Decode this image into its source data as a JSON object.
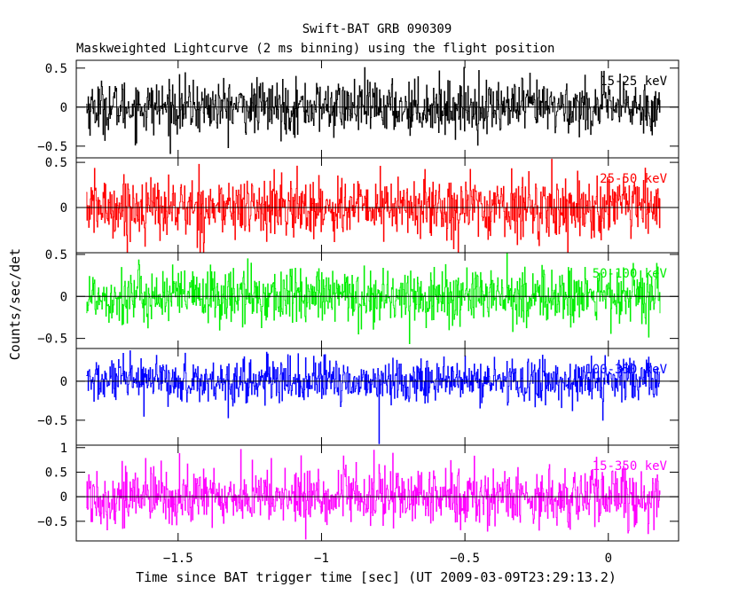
{
  "chart_data": {
    "type": "line",
    "title": "Swift-BAT GRB 090309",
    "subtitle": "Maskweighted Lightcurve (2 ms binning) using the flight position",
    "xlabel": "Time since BAT trigger time [sec] (UT 2009-03-09T23:29:13.2)",
    "ylabel": "Counts/sec/det",
    "xlim": [
      -1.855,
      0.245
    ],
    "x_start": -1.82,
    "x_end": 0.18,
    "x_bin": 0.002,
    "x_ticks": [
      -1.5,
      -1,
      -0.5,
      0
    ],
    "x_tick_labels": [
      "−1.5",
      "−1",
      "−0.5",
      "0"
    ],
    "grid": false,
    "zero_line": true,
    "series": [
      {
        "name": "15-25 keV",
        "color": "#000000",
        "ylim": [
          -0.65,
          0.6
        ],
        "y_ticks": [
          -0.5,
          0,
          0.5
        ],
        "y_tick_labels": [
          "−0.5",
          "0",
          "0.5"
        ],
        "amplitude": 0.17,
        "dips": []
      },
      {
        "name": "25-50 keV",
        "color": "#ff0000",
        "ylim": [
          -0.5,
          0.55
        ],
        "y_ticks": [
          0,
          0.5
        ],
        "y_tick_labels": [
          "0",
          "0.5"
        ],
        "amplitude": 0.17,
        "dips": []
      },
      {
        "name": "50-100 keV",
        "color": "#00ee00",
        "ylim": [
          -0.62,
          0.52
        ],
        "y_ticks": [
          -0.5,
          0,
          0.5
        ],
        "y_tick_labels": [
          "−0.5",
          "0",
          "0.5"
        ],
        "amplitude": 0.17,
        "dips": []
      },
      {
        "name": "100-350 keV",
        "color": "#0000ff",
        "ylim": [
          -0.82,
          0.42
        ],
        "y_ticks": [
          -0.5,
          0
        ],
        "y_tick_labels": [
          "−0.5",
          "0"
        ],
        "amplitude": 0.14,
        "dips": [
          {
            "x": -0.8,
            "y": -0.8
          },
          {
            "x": -1.62,
            "y": -0.45
          },
          {
            "x": -0.02,
            "y": -0.5
          }
        ]
      },
      {
        "name": "15-350 keV",
        "color": "#ff00ff",
        "ylim": [
          -0.9,
          1.05
        ],
        "y_ticks": [
          -0.5,
          0,
          0.5,
          1
        ],
        "y_tick_labels": [
          "−0.5",
          "0",
          "0.5",
          "1"
        ],
        "amplitude": 0.3,
        "dips": []
      }
    ]
  }
}
